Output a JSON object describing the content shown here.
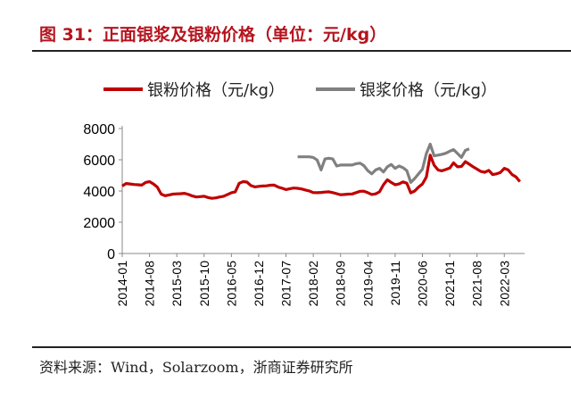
{
  "title": "图 31：正面银浆及银粉价格（单位：元/kg）",
  "source": "资料来源：Wind，Solarzoom，浙商证券研究所",
  "colors": {
    "title": "#b5141e",
    "powder": "#c00000",
    "paste": "#808080"
  },
  "chart_data": {
    "type": "line",
    "title": "正面银浆及银粉价格（单位：元/kg）",
    "xlabel": "",
    "ylabel": "",
    "ylim": [
      0,
      8000
    ],
    "yticks": [
      "0",
      "2000",
      "4000",
      "6000",
      "8000"
    ],
    "xticks": [
      "2014-01",
      "2014-08",
      "2015-03",
      "2015-10",
      "2016-05",
      "2016-12",
      "2017-07",
      "2018-02",
      "2018-09",
      "2019-04",
      "2019-11",
      "2020-06",
      "2021-01",
      "2021-08",
      "2022-03"
    ],
    "x_start": "2014-01",
    "x_unit": "month",
    "grid": false,
    "legend_position": "top",
    "series": [
      {
        "name": "银粉价格（元/kg）",
        "start_index": 0,
        "values": [
          4320,
          4480,
          4450,
          4420,
          4400,
          4380,
          4550,
          4600,
          4450,
          4250,
          3800,
          3700,
          3750,
          3800,
          3820,
          3830,
          3850,
          3780,
          3680,
          3620,
          3640,
          3660,
          3580,
          3530,
          3560,
          3620,
          3660,
          3780,
          3890,
          3950,
          4500,
          4600,
          4570,
          4350,
          4260,
          4300,
          4320,
          4330,
          4370,
          4380,
          4250,
          4180,
          4090,
          4150,
          4190,
          4170,
          4130,
          4060,
          4000,
          3900,
          3890,
          3910,
          3930,
          3950,
          3900,
          3830,
          3760,
          3780,
          3800,
          3810,
          3900,
          3980,
          3990,
          3890,
          3780,
          3820,
          3950,
          4400,
          4720,
          4550,
          4400,
          4450,
          4580,
          4500,
          3880,
          4000,
          4250,
          4450,
          4900,
          6300,
          5650,
          5350,
          5290,
          5380,
          5470,
          5800,
          5550,
          5570,
          5880,
          5720,
          5550,
          5400,
          5250,
          5200,
          5320,
          5050,
          5100,
          5190,
          5450,
          5350,
          5050,
          4900,
          4600
        ]
      },
      {
        "name": "银浆价格（元/kg）",
        "start_index": 45,
        "values": [
          6190,
          6190,
          6190,
          6190,
          6150,
          5980,
          5350,
          6050,
          6100,
          6050,
          5600,
          5660,
          5660,
          5660,
          5660,
          5750,
          5780,
          5620,
          5300,
          5100,
          5350,
          5450,
          5220,
          5550,
          5700,
          5450,
          5600,
          5500,
          5300,
          4550,
          4800,
          5100,
          5400,
          6400,
          7000,
          6250,
          6300,
          6350,
          6420,
          6550,
          6650,
          6400,
          6150,
          6600,
          6700
        ]
      }
    ]
  }
}
